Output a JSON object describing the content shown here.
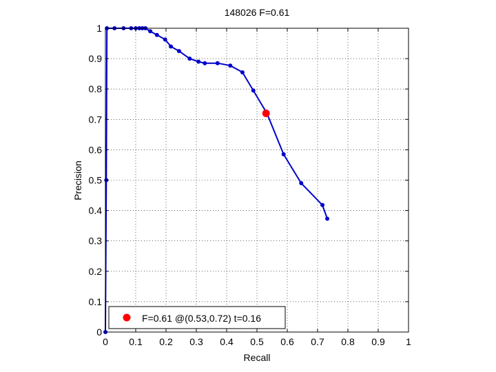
{
  "chart_data": {
    "type": "line",
    "title": "148026 F=0.61",
    "xlabel": "Recall",
    "ylabel": "Precision",
    "xlim": [
      0,
      1
    ],
    "ylim": [
      0,
      1
    ],
    "grid": true,
    "xticks": [
      "0",
      "0.1",
      "0.2",
      "0.3",
      "0.4",
      "0.5",
      "0.6",
      "0.7",
      "0.8",
      "0.9",
      "1"
    ],
    "yticks": [
      "0",
      "0.1",
      "0.2",
      "0.3",
      "0.4",
      "0.5",
      "0.6",
      "0.7",
      "0.8",
      "0.9",
      "1"
    ],
    "series": [
      {
        "color": "#0000cc",
        "x": [
          0.0,
          0.003,
          0.005,
          0.03,
          0.06,
          0.085,
          0.1,
          0.112,
          0.122,
          0.132,
          0.148,
          0.17,
          0.197,
          0.216,
          0.243,
          0.278,
          0.307,
          0.328,
          0.37,
          0.412,
          0.452,
          0.488,
          0.533,
          0.588,
          0.646,
          0.716,
          0.732
        ],
        "y": [
          0.0,
          0.5,
          1.0,
          1.0,
          1.0,
          1.0,
          1.0,
          1.0,
          1.0,
          1.0,
          0.99,
          0.978,
          0.963,
          0.94,
          0.925,
          0.9,
          0.89,
          0.885,
          0.885,
          0.877,
          0.855,
          0.795,
          0.72,
          0.585,
          0.49,
          0.418,
          0.373
        ]
      }
    ],
    "highlight": {
      "x": 0.53,
      "y": 0.72,
      "color": "#ff0000"
    },
    "legend": {
      "position": "bottom-left",
      "text": "F=0.61 @(0.53,0.72) t=0.16"
    }
  }
}
